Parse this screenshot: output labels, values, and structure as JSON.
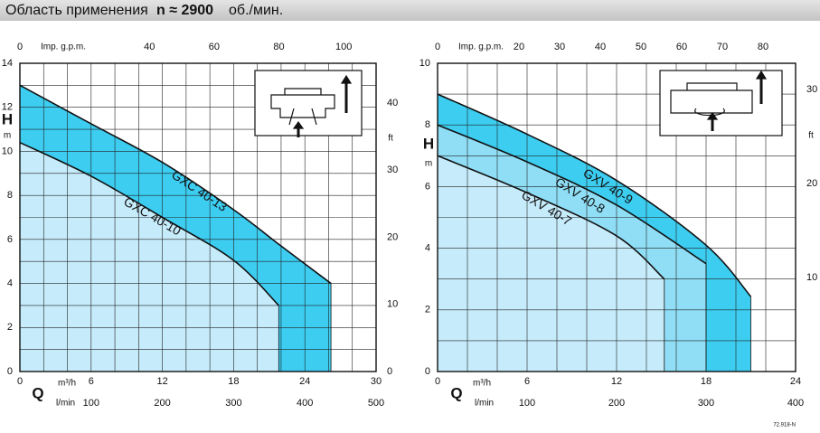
{
  "header": {
    "title": "Область применения",
    "speed": "n ≈ 2900",
    "unit": "об./мин."
  },
  "footer_code": "72.918-N",
  "chart_data": [
    {
      "type": "line",
      "x_label": "Q",
      "x_unit": "m³/h",
      "x2_label": "Imp. g.p.m.",
      "x3_unit": "l/min",
      "y_label": "H",
      "y_unit": "m",
      "y2_unit": "ft",
      "xlim": [
        0,
        30
      ],
      "xticks": [
        0,
        6,
        12,
        18,
        24,
        30
      ],
      "x2lim": [
        0,
        110
      ],
      "x2ticks": [
        0,
        40,
        60,
        80,
        100
      ],
      "x3lim": [
        0,
        500
      ],
      "x3ticks": [
        100,
        200,
        300,
        400,
        500
      ],
      "ylim": [
        0,
        14
      ],
      "yticks": [
        0,
        2,
        4,
        6,
        8,
        10,
        12,
        14
      ],
      "y2lim": [
        0,
        45.93
      ],
      "y2ticks": [
        0,
        10,
        20,
        30,
        40
      ],
      "xgrid": [
        2,
        4,
        6,
        8,
        10,
        12,
        14,
        16,
        18,
        20,
        22,
        24,
        26,
        28
      ],
      "ygrid": [
        1,
        2,
        3,
        4,
        5,
        6,
        7,
        8,
        9,
        10,
        11,
        12,
        13
      ],
      "series": [
        {
          "name": "GXC 40-13",
          "fill": "#3ccdf1",
          "x": [
            0,
            6,
            12,
            18,
            22,
            26.2
          ],
          "values": [
            13,
            11.25,
            9.5,
            7.35,
            5.7,
            4
          ]
        },
        {
          "name": "GXC 40-10",
          "fill": "#c6ecfb",
          "x": [
            0,
            6,
            12,
            18,
            21.8
          ],
          "values": [
            10.4,
            8.87,
            7,
            5.05,
            3
          ]
        }
      ]
    },
    {
      "type": "line",
      "x_label": "Q",
      "x_unit": "m³/h",
      "x2_label": "Imp. g.p.m.",
      "x3_unit": "l/min",
      "y_label": "H",
      "y_unit": "m",
      "y2_unit": "ft",
      "xlim": [
        0,
        24
      ],
      "xticks": [
        0,
        6,
        12,
        18,
        24
      ],
      "x2lim": [
        0,
        88
      ],
      "x2ticks": [
        0,
        20,
        30,
        40,
        50,
        60,
        70,
        80
      ],
      "x3lim": [
        0,
        400
      ],
      "x3ticks": [
        100,
        200,
        300,
        400
      ],
      "ylim": [
        0,
        10
      ],
      "yticks": [
        0,
        2,
        4,
        6,
        8,
        10
      ],
      "y2lim": [
        0,
        32.81
      ],
      "y2ticks": [
        10,
        20,
        30
      ],
      "xgrid": [
        2,
        4,
        6,
        8,
        10,
        12,
        14,
        16,
        18,
        20,
        22
      ],
      "ygrid": [
        1,
        2,
        3,
        4,
        5,
        6,
        7,
        8,
        9
      ],
      "series": [
        {
          "name": "GXV 40-9",
          "fill": "#3ccdf1",
          "x": [
            0,
            6,
            12,
            18,
            21
          ],
          "values": [
            9,
            7.7,
            6.2,
            4.1,
            2.43
          ]
        },
        {
          "name": "GXV 40-8",
          "fill": "#8fdef6",
          "x": [
            0,
            6,
            12,
            18
          ],
          "values": [
            8,
            6.8,
            5.4,
            3.5
          ]
        },
        {
          "name": "GXV 40-7",
          "fill": "#c6ecfb",
          "x": [
            0,
            6,
            12,
            15.2
          ],
          "values": [
            7,
            5.8,
            4.4,
            3
          ]
        }
      ]
    }
  ]
}
